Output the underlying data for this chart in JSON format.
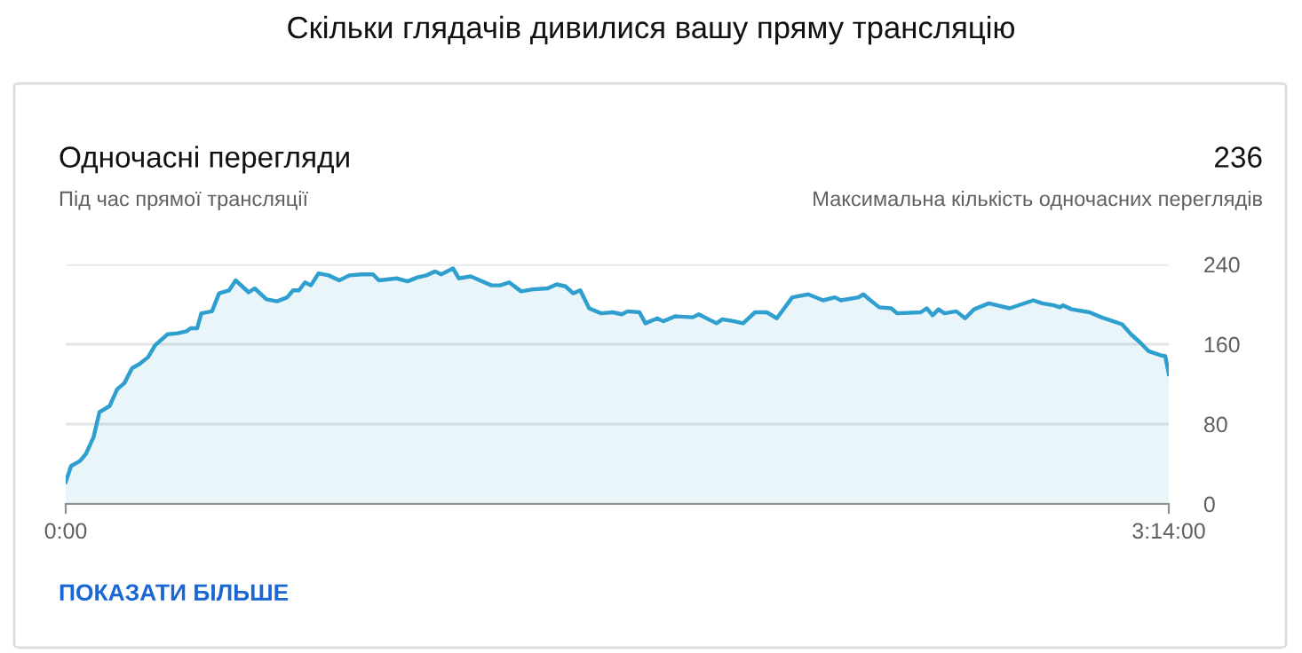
{
  "chart_data": {
    "type": "area",
    "title": "Скільки глядачів дивилися вашу пряму трансляцію",
    "subtitle": "Одночасні перегляди",
    "annotations": [
      "Під час прямої трансляції",
      "236",
      "Максимальна кількість одночасних переглядів",
      "ПОКАЗАТИ БІЛЬШЕ"
    ],
    "xlim": [
      0,
      3.2333
    ],
    "xticks": [
      {
        "value": 0,
        "label": "0:00"
      },
      {
        "value": 3.2333,
        "label": "3:14:00"
      }
    ],
    "ylim": [
      0,
      240
    ],
    "yticks": [
      0,
      80,
      160,
      240
    ],
    "grid": "y",
    "legend": false,
    "marker": "none",
    "line_style": "solid",
    "series": [
      {
        "color": "#2e9fcf",
        "x": [
          0,
          0.0156,
          0.0417,
          0.059,
          0.0816,
          0.0989,
          0.1284,
          0.151,
          0.1718,
          0.1944,
          0.2152,
          0.2413,
          0.2621,
          0.2985,
          0.328,
          0.3541,
          0.3662,
          0.3853,
          0.3975,
          0.4287,
          0.4495,
          0.479,
          0.4981,
          0.5363,
          0.5537,
          0.5884,
          0.6196,
          0.6491,
          0.6665,
          0.6839,
          0.7012,
          0.7186,
          0.7411,
          0.7706,
          0.8019,
          0.8314,
          0.8661,
          0.9008,
          0.9182,
          0.9702,
          1.0015,
          1.031,
          1.057,
          1.083,
          1.1004,
          1.1351,
          1.1525,
          1.1872,
          1.248,
          1.274,
          1.3,
          1.3347,
          1.3694,
          1.4128,
          1.4388,
          1.4649,
          1.4875,
          1.5083,
          1.5343,
          1.569,
          1.6037,
          1.6298,
          1.6471,
          1.6818,
          1.6992,
          1.734,
          1.7513,
          1.786,
          1.8381,
          1.8555,
          1.9075,
          1.9249,
          1.9596,
          1.9856,
          2.0203,
          2.0551,
          2.0845,
          2.1297,
          2.1765,
          2.2199,
          2.2547,
          2.272,
          2.3241,
          2.338,
          2.3588,
          2.3848,
          2.4195,
          2.4369,
          2.5063,
          2.5237,
          2.541,
          2.5584,
          2.5757,
          2.6104,
          2.6365,
          2.6625,
          2.7059,
          2.7667,
          2.8361,
          2.8621,
          2.8968,
          2.9142,
          2.9228,
          2.9489,
          3.001,
          3.0357,
          3.0704,
          3.0965,
          3.1225,
          3.1485,
          3.1746,
          3.2092,
          3.2231,
          3.2333
        ],
        "values": [
          22,
          38,
          43,
          50,
          67,
          92,
          98,
          115,
          121,
          136,
          140,
          147,
          159,
          170,
          171,
          173,
          176,
          176,
          191,
          193,
          211,
          214,
          224,
          212,
          216,
          205,
          203,
          207,
          214,
          214,
          222,
          219,
          231,
          229,
          224,
          229,
          230,
          230,
          224,
          226,
          223,
          227,
          229,
          233,
          230,
          236,
          226,
          228,
          219,
          219,
          222,
          213,
          215,
          216,
          220,
          218,
          211,
          214,
          196,
          191,
          192,
          190,
          193,
          192,
          181,
          186,
          183,
          188,
          187,
          190,
          181,
          185,
          183,
          181,
          192,
          192,
          186,
          207,
          210,
          204,
          207,
          204,
          207,
          210,
          204,
          197,
          196,
          191,
          192,
          196,
          189,
          195,
          191,
          193,
          186,
          195,
          201,
          196,
          204,
          201,
          199,
          197,
          199,
          195,
          192,
          187,
          183,
          180,
          170,
          162,
          153,
          149,
          148,
          130
        ]
      }
    ]
  }
}
